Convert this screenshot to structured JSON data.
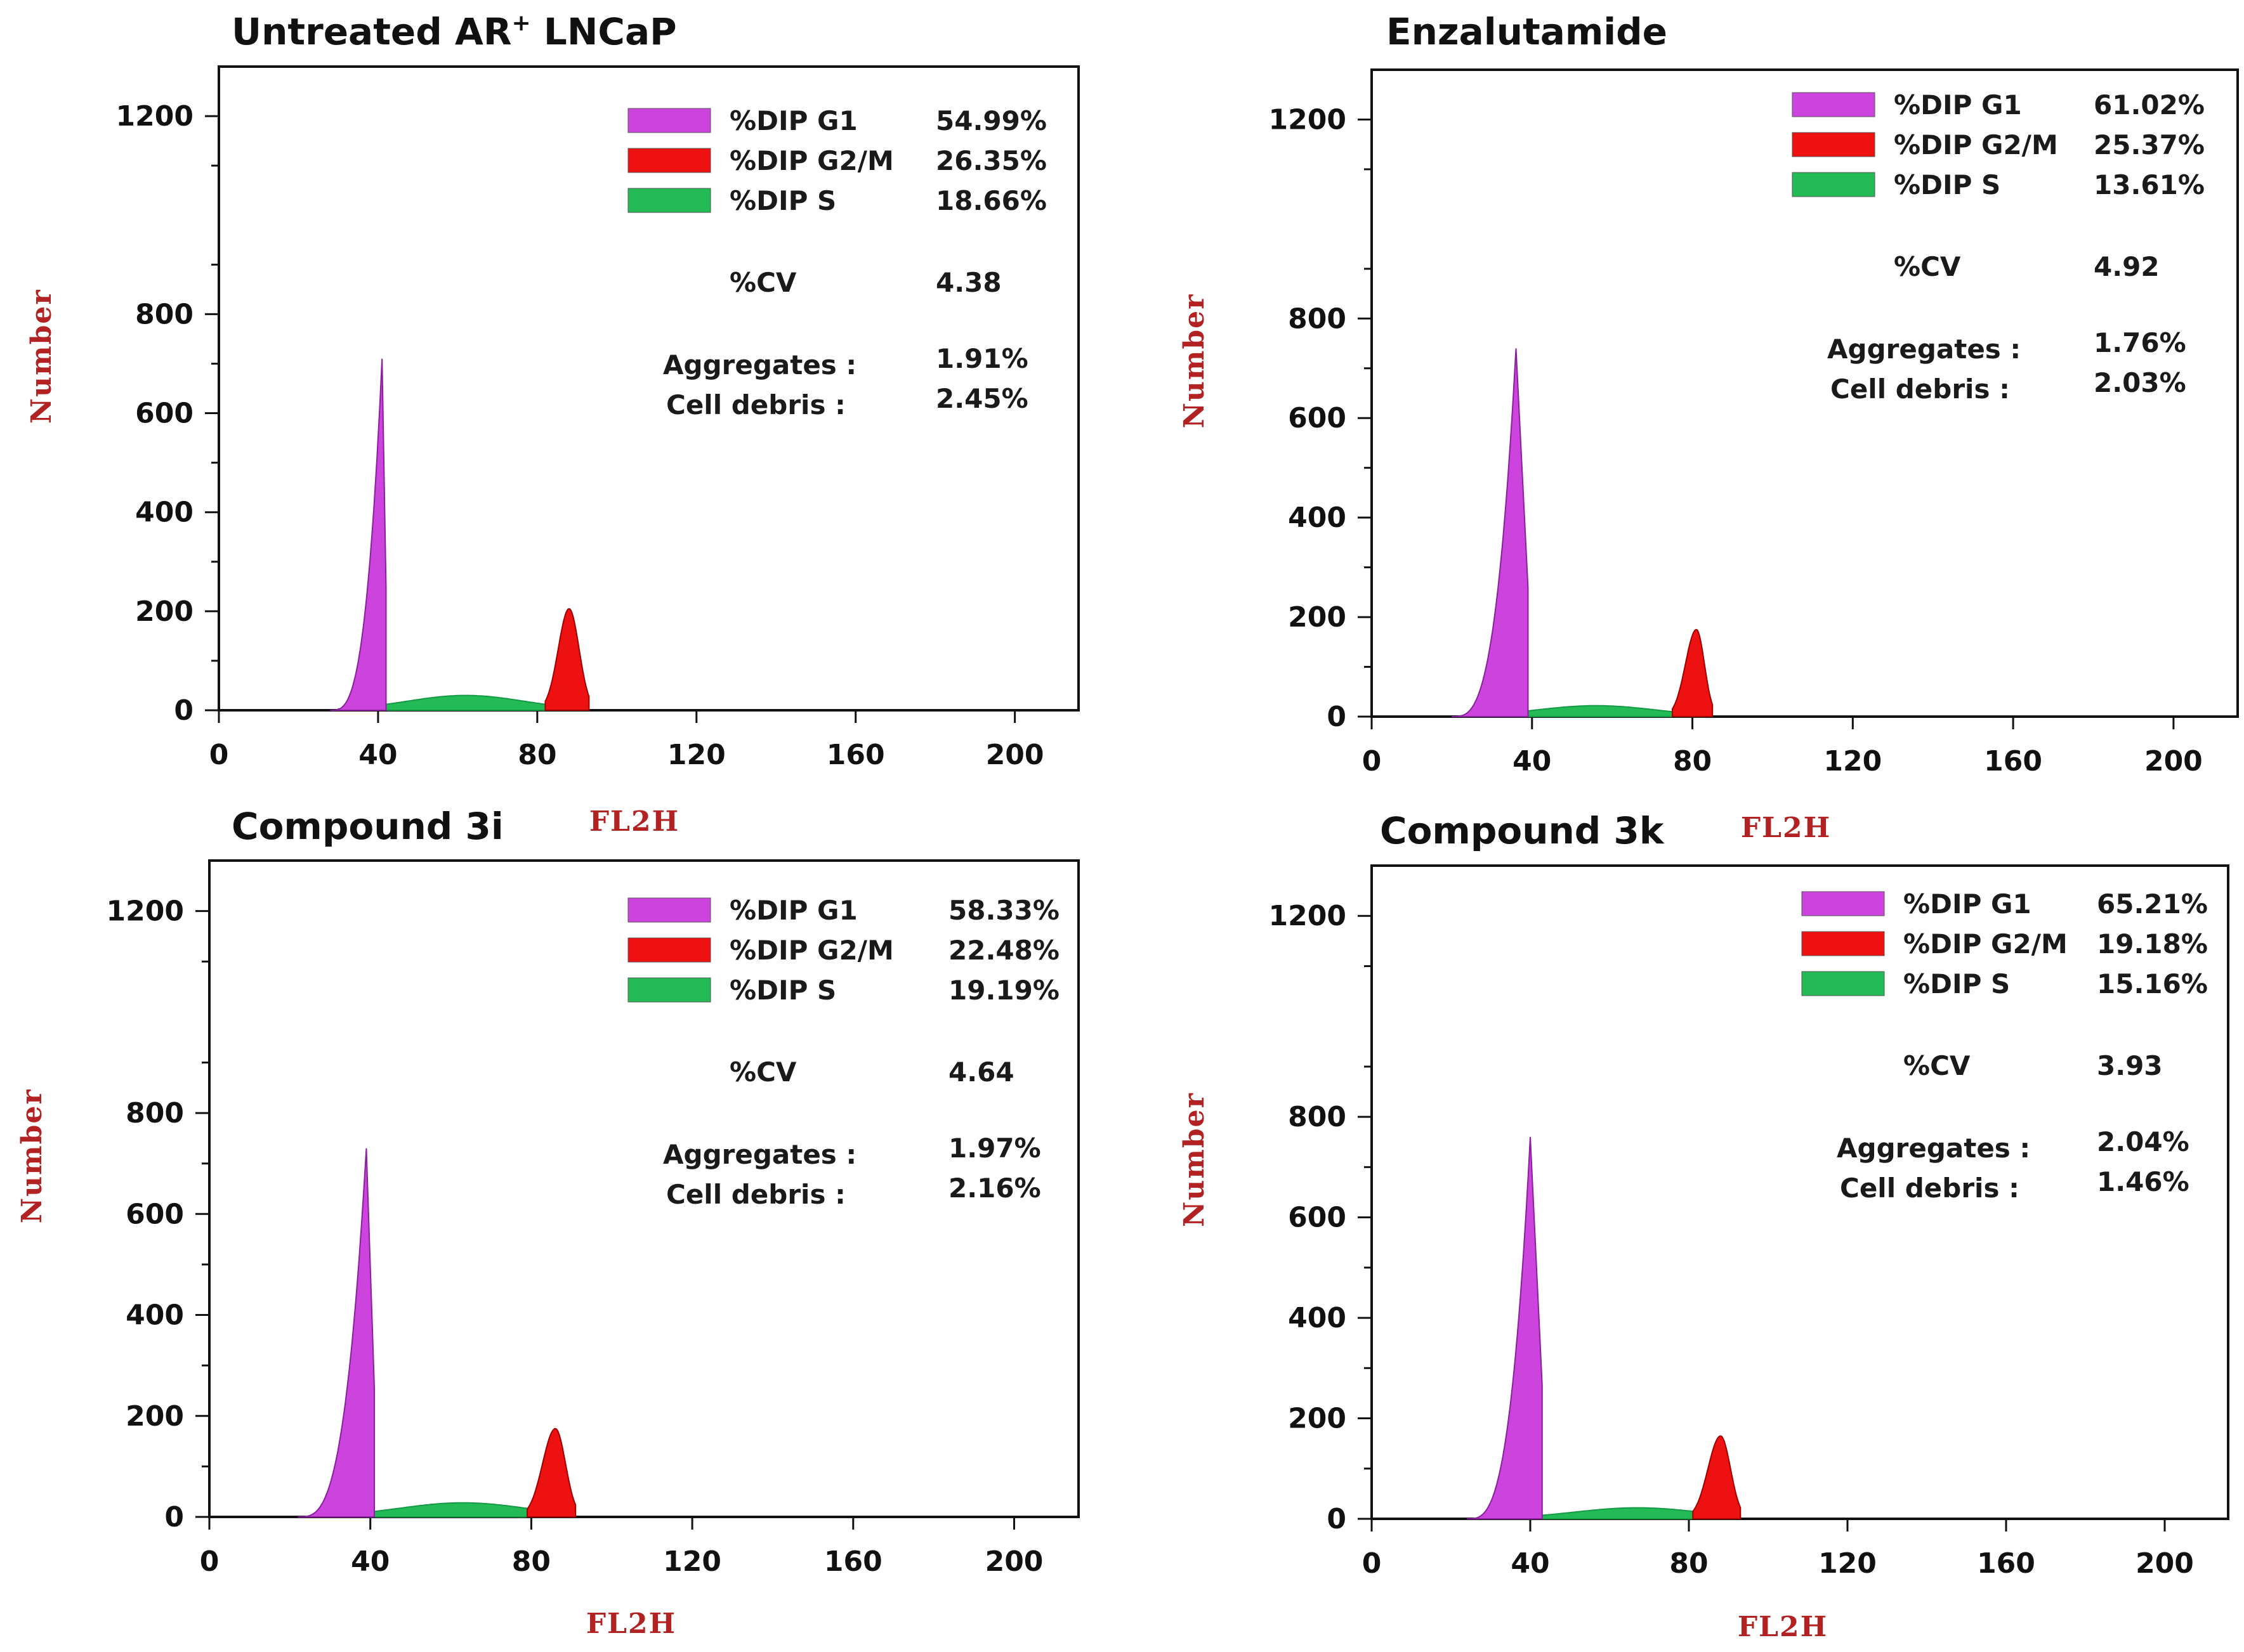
{
  "axis_labels": {
    "x": "FL2H",
    "y": "Number"
  },
  "legend_labels": {
    "g1": "%DIP G1",
    "g2m": "%DIP G2/M",
    "s": "%DIP S",
    "cv": "%CV",
    "aggregates": "Aggregates :",
    "debris": "Cell debris  :"
  },
  "colors": {
    "g1": "#cc44dd",
    "g2m": "#ee1111",
    "s": "#22bb55"
  },
  "chart_data": [
    {
      "type": "area",
      "title": "Untreated AR",
      "title_sup": "+",
      "title_suffix": " LNCaP",
      "xlabel": "FL2H",
      "ylabel": "Number",
      "xlim": [
        0,
        216
      ],
      "ylim": [
        0,
        1300
      ],
      "xticks": [
        0,
        40,
        80,
        120,
        160,
        200
      ],
      "yticks": [
        0,
        200,
        400,
        600,
        800,
        1200
      ],
      "g1": {
        "start": 28,
        "peak_x": 41,
        "peak_y": 710,
        "end": 42
      },
      "g2m": {
        "start": 82,
        "peak_x": 88,
        "peak_y": 205,
        "end": 93
      },
      "s": {
        "start": 30,
        "peak_x": 62,
        "peak_y": 30,
        "end": 92
      },
      "stats": {
        "g1": "54.99%",
        "g2m": "26.35%",
        "s": "18.66%",
        "cv": "4.38",
        "aggregates": "1.91%",
        "debris": "2.45%"
      }
    },
    {
      "type": "area",
      "title": "Enzalutamide",
      "title_sup": "",
      "title_suffix": "",
      "xlabel": "FL2H",
      "ylabel": "Number",
      "xlim": [
        0,
        216
      ],
      "ylim": [
        0,
        1300
      ],
      "xticks": [
        0,
        40,
        80,
        120,
        160,
        200
      ],
      "yticks": [
        0,
        200,
        400,
        600,
        800,
        1200
      ],
      "g1": {
        "start": 20,
        "peak_x": 36,
        "peak_y": 740,
        "end": 39
      },
      "g2m": {
        "start": 75,
        "peak_x": 81,
        "peak_y": 175,
        "end": 85
      },
      "s": {
        "start": 22,
        "peak_x": 56,
        "peak_y": 22,
        "end": 85
      },
      "stats": {
        "g1": "61.02%",
        "g2m": "25.37%",
        "s": "13.61%",
        "cv": "4.92",
        "aggregates": "1.76%",
        "debris": "2.03%"
      }
    },
    {
      "type": "area",
      "title": "Compound 3i",
      "title_sup": "",
      "title_suffix": "",
      "xlabel": "FL2H",
      "ylabel": "Number",
      "xlim": [
        0,
        216
      ],
      "ylim": [
        0,
        1300
      ],
      "xticks": [
        0,
        40,
        80,
        120,
        160,
        200
      ],
      "yticks": [
        0,
        200,
        400,
        600,
        800,
        1200
      ],
      "g1": {
        "start": 22,
        "peak_x": 39,
        "peak_y": 730,
        "end": 41
      },
      "g2m": {
        "start": 79,
        "peak_x": 86,
        "peak_y": 175,
        "end": 91
      },
      "s": {
        "start": 24,
        "peak_x": 63,
        "peak_y": 28,
        "end": 91
      },
      "stats": {
        "g1": "58.33%",
        "g2m": "22.48%",
        "s": "19.19%",
        "cv": "4.64",
        "aggregates": "1.97%",
        "debris": "2.16%"
      }
    },
    {
      "type": "area",
      "title": "Compound 3k",
      "title_sup": "",
      "title_suffix": "",
      "xlabel": "FL2H",
      "ylabel": "Number",
      "xlim": [
        0,
        216
      ],
      "ylim": [
        0,
        1300
      ],
      "xticks": [
        0,
        40,
        80,
        120,
        160,
        200
      ],
      "yticks": [
        0,
        200,
        400,
        600,
        800,
        1200
      ],
      "g1": {
        "start": 24,
        "peak_x": 40,
        "peak_y": 760,
        "end": 43
      },
      "g2m": {
        "start": 81,
        "peak_x": 88,
        "peak_y": 165,
        "end": 93
      },
      "s": {
        "start": 26,
        "peak_x": 67,
        "peak_y": 22,
        "end": 93
      },
      "stats": {
        "g1": "65.21%",
        "g2m": "19.18%",
        "s": "15.16%",
        "cv": "3.93",
        "aggregates": "2.04%",
        "debris": "1.46%"
      }
    }
  ]
}
